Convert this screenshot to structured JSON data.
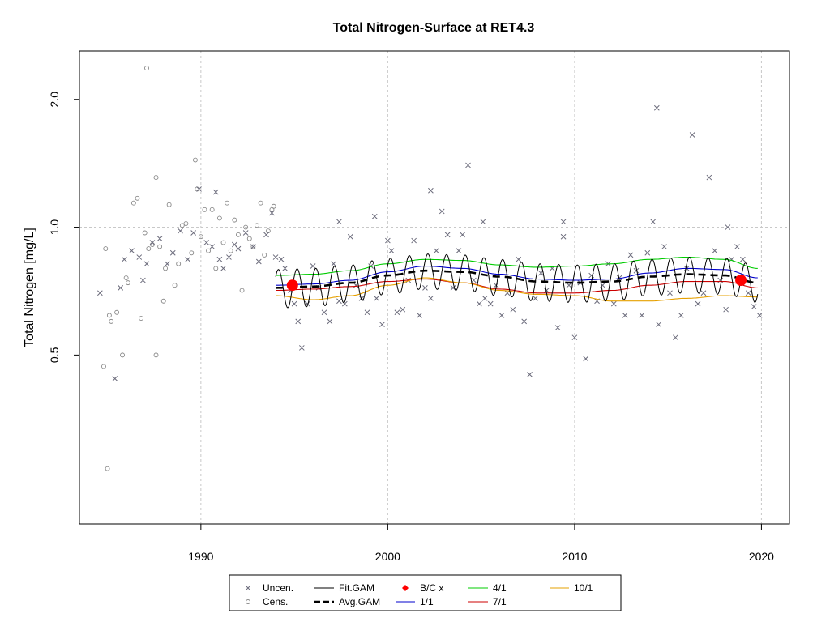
{
  "chart_data": {
    "type": "scatter",
    "title": "Total Nitrogen-Surface at RET4.3",
    "xlabel": "",
    "ylabel": "Total Nitrogen [mg/L]",
    "xlim": [
      1983.5,
      2021.5
    ],
    "ylim": [
      0.2,
      2.6
    ],
    "log_y": true,
    "x_ticks": [
      1990,
      2000,
      2010,
      2020
    ],
    "x_tick_labels": [
      "1990",
      "2000",
      "2010",
      "2020"
    ],
    "y_ticks": [
      0.5,
      1.0,
      2.0
    ],
    "y_tick_labels": [
      "0.5",
      "1.0",
      "2.0"
    ],
    "grid": true,
    "legend_position": "bottom",
    "colors": {
      "uncensored": "#6b6b7b",
      "censored": "#888888",
      "fit_gam": "#000000",
      "avg_gam": "#000000",
      "bc": "#ff0000",
      "season_1_1": "#0000cc",
      "season_4_1": "#00cc00",
      "season_7_1": "#cc0000",
      "season_10_1": "#e6a000",
      "grid": "#c8c8c8"
    },
    "legend": [
      {
        "label": "Uncen.",
        "symbol": "x",
        "color": "#6b6b7b"
      },
      {
        "label": "Cens.",
        "symbol": "circle",
        "color": "#888888"
      },
      {
        "label": "Fit.GAM",
        "symbol": "line",
        "color": "#000000"
      },
      {
        "label": "Avg.GAM",
        "symbol": "dashed",
        "color": "#000000"
      },
      {
        "label": "B/C x",
        "symbol": "diamond",
        "color": "#ff0000"
      },
      {
        "label": "1/1",
        "symbol": "line",
        "color": "#0000cc"
      },
      {
        "label": "4/1",
        "symbol": "line",
        "color": "#00cc00"
      },
      {
        "label": "7/1",
        "symbol": "line",
        "color": "#cc0000"
      },
      {
        "label": "10/1",
        "symbol": "line",
        "color": "#e6a000"
      }
    ],
    "bc_points": [
      {
        "x": 1994.9,
        "y": 0.73
      },
      {
        "x": 2018.9,
        "y": 0.75
      }
    ],
    "series": [
      {
        "name": "Avg.GAM",
        "x": [
          1994,
          1996,
          1998,
          2000,
          2002,
          2004,
          2006,
          2008,
          2010,
          2012,
          2014,
          2016,
          2018,
          2019.8
        ],
        "y": [
          0.72,
          0.725,
          0.74,
          0.77,
          0.79,
          0.785,
          0.765,
          0.745,
          0.74,
          0.745,
          0.765,
          0.775,
          0.77,
          0.74
        ]
      },
      {
        "name": "1/1",
        "x": [
          1994,
          1996,
          1998,
          2000,
          2002,
          2004,
          2006,
          2008,
          2010,
          2012,
          2014,
          2016,
          2018,
          2019.8
        ],
        "y": [
          0.73,
          0.735,
          0.75,
          0.785,
          0.81,
          0.8,
          0.775,
          0.755,
          0.75,
          0.755,
          0.78,
          0.8,
          0.795,
          0.76
        ]
      },
      {
        "name": "4/1",
        "x": [
          1994,
          1996,
          1998,
          2000,
          2002,
          2004,
          2006,
          2008,
          2010,
          2012,
          2014,
          2016,
          2018,
          2019.8
        ],
        "y": [
          0.77,
          0.775,
          0.79,
          0.82,
          0.84,
          0.835,
          0.815,
          0.805,
          0.81,
          0.82,
          0.84,
          0.85,
          0.84,
          0.8
        ]
      },
      {
        "name": "7/1",
        "x": [
          1994,
          1996,
          1998,
          2000,
          2002,
          2004,
          2006,
          2008,
          2010,
          2012,
          2014,
          2016,
          2018,
          2019.8
        ],
        "y": [
          0.71,
          0.715,
          0.725,
          0.745,
          0.755,
          0.74,
          0.715,
          0.7,
          0.7,
          0.71,
          0.73,
          0.745,
          0.745,
          0.72
        ]
      },
      {
        "name": "10/1",
        "x": [
          1994,
          1996,
          1998,
          2000,
          2002,
          2004,
          2006,
          2008,
          2010,
          2012,
          2014,
          2016,
          2018,
          2019.8
        ],
        "y": [
          0.69,
          0.675,
          0.69,
          0.73,
          0.76,
          0.74,
          0.71,
          0.695,
          0.69,
          0.67,
          0.67,
          0.68,
          0.69,
          0.685
        ]
      }
    ],
    "fit_gam_amplitude": 0.075,
    "uncensored_points": [
      [
        1984.6,
        0.7
      ],
      [
        1985.4,
        0.44
      ],
      [
        1985.7,
        0.72
      ],
      [
        1985.9,
        0.84
      ],
      [
        1986.3,
        0.88
      ],
      [
        1986.7,
        0.85
      ],
      [
        1986.9,
        0.75
      ],
      [
        1987.1,
        0.82
      ],
      [
        1987.4,
        0.92
      ],
      [
        1987.8,
        0.94
      ],
      [
        1988.2,
        0.82
      ],
      [
        1988.5,
        0.87
      ],
      [
        1988.9,
        0.98
      ],
      [
        1989.3,
        0.84
      ],
      [
        1989.6,
        0.97
      ],
      [
        1989.9,
        1.23
      ],
      [
        1990.3,
        0.92
      ],
      [
        1990.6,
        0.9
      ],
      [
        1990.8,
        1.21
      ],
      [
        1991.0,
        0.84
      ],
      [
        1991.2,
        0.8
      ],
      [
        1991.5,
        0.85
      ],
      [
        1991.8,
        0.91
      ],
      [
        1992.0,
        0.89
      ],
      [
        1992.4,
        0.97
      ],
      [
        1992.8,
        0.9
      ],
      [
        1993.1,
        0.83
      ],
      [
        1993.5,
        0.96
      ],
      [
        1993.8,
        1.08
      ],
      [
        1994.0,
        0.85
      ],
      [
        1994.3,
        0.84
      ],
      [
        1994.5,
        0.8
      ],
      [
        1994.8,
        0.71
      ],
      [
        1995.0,
        0.66
      ],
      [
        1995.2,
        0.6
      ],
      [
        1995.4,
        0.52
      ],
      [
        1995.7,
        0.66
      ],
      [
        1996.0,
        0.81
      ],
      [
        1996.3,
        0.72
      ],
      [
        1996.6,
        0.63
      ],
      [
        1996.9,
        0.6
      ],
      [
        1997.1,
        0.82
      ],
      [
        1997.4,
        0.67
      ],
      [
        1997.7,
        0.66
      ],
      [
        1998.0,
        0.95
      ],
      [
        1998.3,
        0.73
      ],
      [
        1998.6,
        0.68
      ],
      [
        1998.9,
        0.63
      ],
      [
        1999.1,
        0.81
      ],
      [
        1999.4,
        0.68
      ],
      [
        1999.7,
        0.59
      ],
      [
        2000.0,
        0.93
      ],
      [
        2000.2,
        0.88
      ],
      [
        2000.5,
        0.63
      ],
      [
        2000.8,
        0.64
      ],
      [
        2001.1,
        0.75
      ],
      [
        2001.4,
        0.93
      ],
      [
        2001.7,
        0.62
      ],
      [
        2002.0,
        0.72
      ],
      [
        2002.3,
        0.68
      ],
      [
        2002.6,
        0.88
      ],
      [
        2002.9,
        1.09
      ],
      [
        2003.2,
        0.96
      ],
      [
        2003.5,
        0.72
      ],
      [
        2003.8,
        0.88
      ],
      [
        2004.0,
        0.96
      ],
      [
        2004.3,
        1.4
      ],
      [
        2004.6,
        0.75
      ],
      [
        2004.9,
        0.66
      ],
      [
        2005.2,
        0.68
      ],
      [
        2005.5,
        0.66
      ],
      [
        2005.8,
        0.73
      ],
      [
        2006.1,
        0.62
      ],
      [
        2006.4,
        0.7
      ],
      [
        2006.7,
        0.64
      ],
      [
        2007.0,
        0.84
      ],
      [
        2007.3,
        0.6
      ],
      [
        2007.6,
        0.45
      ],
      [
        2007.9,
        0.68
      ],
      [
        2008.2,
        0.78
      ],
      [
        2008.5,
        0.71
      ],
      [
        2008.8,
        0.8
      ],
      [
        2009.1,
        0.58
      ],
      [
        2009.4,
        0.95
      ],
      [
        2009.7,
        0.73
      ],
      [
        2010.0,
        0.55
      ],
      [
        2010.3,
        0.74
      ],
      [
        2010.6,
        0.49
      ],
      [
        2010.9,
        0.77
      ],
      [
        2011.2,
        0.67
      ],
      [
        2011.5,
        0.73
      ],
      [
        2011.8,
        0.82
      ],
      [
        2012.1,
        0.66
      ],
      [
        2012.4,
        0.76
      ],
      [
        2012.7,
        0.62
      ],
      [
        2013.0,
        0.86
      ],
      [
        2013.3,
        0.79
      ],
      [
        2013.6,
        0.62
      ],
      [
        2013.9,
        0.87
      ],
      [
        2014.2,
        1.03
      ],
      [
        2014.5,
        0.59
      ],
      [
        2014.8,
        0.9
      ],
      [
        2015.1,
        0.7
      ],
      [
        2015.4,
        0.55
      ],
      [
        2015.7,
        0.62
      ],
      [
        2016.0,
        0.8
      ],
      [
        2016.3,
        1.65
      ],
      [
        2016.6,
        0.66
      ],
      [
        2016.9,
        0.7
      ],
      [
        2017.2,
        1.31
      ],
      [
        2017.5,
        0.88
      ],
      [
        2017.8,
        0.75
      ],
      [
        2018.1,
        0.64
      ],
      [
        2018.4,
        0.84
      ],
      [
        2018.7,
        0.9
      ],
      [
        2019.0,
        0.84
      ],
      [
        2019.3,
        0.7
      ],
      [
        2019.6,
        0.65
      ],
      [
        2019.9,
        0.62
      ],
      [
        2014.4,
        1.91
      ],
      [
        2018.2,
        1.0
      ],
      [
        2002.3,
        1.22
      ],
      [
        2005.1,
        1.03
      ],
      [
        2009.4,
        1.03
      ],
      [
        1997.4,
        1.03
      ],
      [
        1999.3,
        1.06
      ]
    ],
    "censored_points": [
      [
        1984.8,
        0.47
      ],
      [
        1985.0,
        0.27
      ],
      [
        1985.2,
        0.6
      ],
      [
        1985.5,
        0.63
      ],
      [
        1985.8,
        0.5
      ],
      [
        1986.1,
        0.74
      ],
      [
        1986.4,
        1.14
      ],
      [
        1986.6,
        1.17
      ],
      [
        1986.8,
        0.61
      ],
      [
        1987.0,
        0.97
      ],
      [
        1987.2,
        0.89
      ],
      [
        1987.4,
        0.91
      ],
      [
        1987.6,
        1.31
      ],
      [
        1987.8,
        0.9
      ],
      [
        1988.0,
        0.67
      ],
      [
        1988.3,
        1.13
      ],
      [
        1988.6,
        0.73
      ],
      [
        1988.8,
        0.82
      ],
      [
        1989.0,
        1.01
      ],
      [
        1989.2,
        1.02
      ],
      [
        1989.5,
        0.87
      ],
      [
        1989.7,
        1.44
      ],
      [
        1989.8,
        1.23
      ],
      [
        1990.0,
        0.95
      ],
      [
        1990.2,
        1.1
      ],
      [
        1990.4,
        0.88
      ],
      [
        1990.6,
        1.1
      ],
      [
        1990.8,
        0.8
      ],
      [
        1991.0,
        1.05
      ],
      [
        1991.2,
        0.92
      ],
      [
        1991.4,
        1.14
      ],
      [
        1991.6,
        0.88
      ],
      [
        1991.8,
        1.04
      ],
      [
        1992.0,
        0.96
      ],
      [
        1992.2,
        0.71
      ],
      [
        1992.4,
        1.0
      ],
      [
        1992.6,
        0.94
      ],
      [
        1992.8,
        0.9
      ],
      [
        1993.0,
        1.01
      ],
      [
        1993.2,
        1.14
      ],
      [
        1993.4,
        0.86
      ],
      [
        1993.6,
        0.98
      ],
      [
        1993.8,
        1.1
      ],
      [
        1993.9,
        1.12
      ],
      [
        1987.1,
        2.37
      ],
      [
        1987.6,
        0.5
      ],
      [
        1984.9,
        0.89
      ],
      [
        1985.1,
        0.62
      ],
      [
        1986.0,
        0.76
      ],
      [
        1988.1,
        0.8
      ]
    ]
  }
}
